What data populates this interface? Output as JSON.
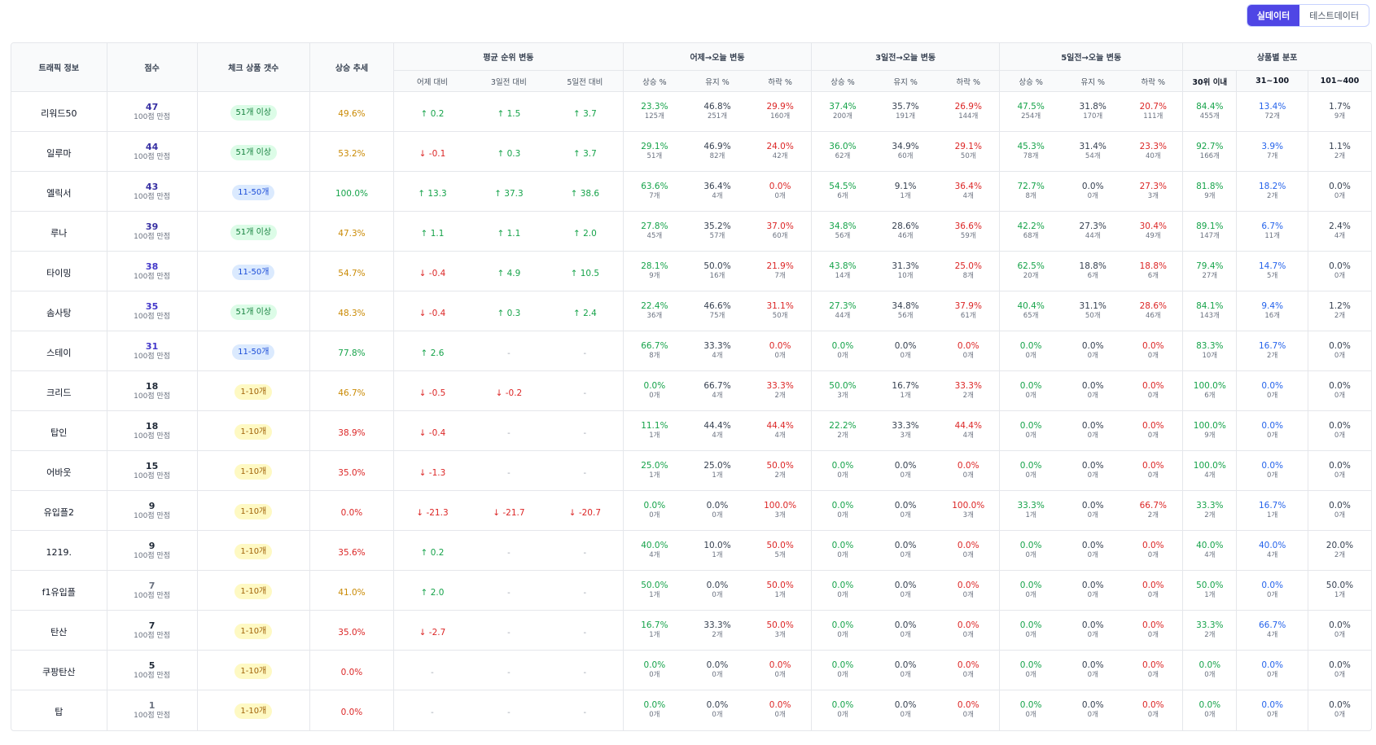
{
  "toggle": {
    "real": "실데이터",
    "test": "테스트데이터"
  },
  "headers": {
    "traffic": "트래픽 정보",
    "score": "점수",
    "checkcount": "체크 상품 갯수",
    "trend": "상승 추세",
    "avgrank": "평균 순위 변동",
    "rank_sub": [
      "어제 대비",
      "3일전 대비",
      "5일전 대비"
    ],
    "groups": [
      "어제→오늘 변동",
      "3일전→오늘 변동",
      "5일전→오늘 변동"
    ],
    "group_sub": [
      "상승 %",
      "유지 %",
      "하락 %"
    ],
    "dist": "상품별 분포",
    "dist_sub": [
      "30위 이내",
      "31~100",
      "101~400"
    ]
  },
  "score_suffix": "100점 만점",
  "badge_colors": {
    "51개 이상": {
      "bg": "#dcfce7",
      "fg": "#15803d"
    },
    "11-50개": {
      "bg": "#dbeafe",
      "fg": "#1d4ed8"
    },
    "1-10개": {
      "bg": "#fef9c3",
      "fg": "#a16207"
    }
  },
  "rows": [
    {
      "name": "리워드50",
      "score": "47",
      "score_color": "#3730a3",
      "badge": "51개 이상",
      "trend": "49.6%",
      "trend_color": "#ca8a04",
      "rank": [
        {
          "d": "up",
          "v": "0.2"
        },
        {
          "d": "up",
          "v": "1.5"
        },
        {
          "d": "up",
          "v": "3.7"
        }
      ],
      "g": [
        [
          "23.3%",
          "125개",
          "46.8%",
          "251개",
          "29.9%",
          "160개"
        ],
        [
          "37.4%",
          "200개",
          "35.7%",
          "191개",
          "26.9%",
          "144개"
        ],
        [
          "47.5%",
          "254개",
          "31.8%",
          "170개",
          "20.7%",
          "111개"
        ]
      ],
      "dist": [
        "84.4%",
        "455개",
        "13.4%",
        "72개",
        "1.7%",
        "9개"
      ]
    },
    {
      "name": "일루마",
      "score": "44",
      "score_color": "#3730a3",
      "badge": "51개 이상",
      "trend": "53.2%",
      "trend_color": "#ca8a04",
      "rank": [
        {
          "d": "down",
          "v": "-0.1"
        },
        {
          "d": "up",
          "v": "0.3"
        },
        {
          "d": "up",
          "v": "3.7"
        }
      ],
      "g": [
        [
          "29.1%",
          "51개",
          "46.9%",
          "82개",
          "24.0%",
          "42개"
        ],
        [
          "36.0%",
          "62개",
          "34.9%",
          "60개",
          "29.1%",
          "50개"
        ],
        [
          "45.3%",
          "78개",
          "31.4%",
          "54개",
          "23.3%",
          "40개"
        ]
      ],
      "dist": [
        "92.7%",
        "166개",
        "3.9%",
        "7개",
        "1.1%",
        "2개"
      ]
    },
    {
      "name": "엘릭서",
      "score": "43",
      "score_color": "#3730a3",
      "badge": "11-50개",
      "trend": "100.0%",
      "trend_color": "#16a34a",
      "rank": [
        {
          "d": "up",
          "v": "13.3"
        },
        {
          "d": "up",
          "v": "37.3"
        },
        {
          "d": "up",
          "v": "38.6"
        }
      ],
      "g": [
        [
          "63.6%",
          "7개",
          "36.4%",
          "4개",
          "0.0%",
          "0개"
        ],
        [
          "54.5%",
          "6개",
          "9.1%",
          "1개",
          "36.4%",
          "4개"
        ],
        [
          "72.7%",
          "8개",
          "0.0%",
          "0개",
          "27.3%",
          "3개"
        ]
      ],
      "dist": [
        "81.8%",
        "9개",
        "18.2%",
        "2개",
        "0.0%",
        "0개"
      ]
    },
    {
      "name": "루나",
      "score": "39",
      "score_color": "#3730a3",
      "badge": "51개 이상",
      "trend": "47.3%",
      "trend_color": "#ca8a04",
      "rank": [
        {
          "d": "up",
          "v": "1.1"
        },
        {
          "d": "up",
          "v": "1.1"
        },
        {
          "d": "up",
          "v": "2.0"
        }
      ],
      "g": [
        [
          "27.8%",
          "45개",
          "35.2%",
          "57개",
          "37.0%",
          "60개"
        ],
        [
          "34.8%",
          "56개",
          "28.6%",
          "46개",
          "36.6%",
          "59개"
        ],
        [
          "42.2%",
          "68개",
          "27.3%",
          "44개",
          "30.4%",
          "49개"
        ]
      ],
      "dist": [
        "89.1%",
        "147개",
        "6.7%",
        "11개",
        "2.4%",
        "4개"
      ]
    },
    {
      "name": "타이밍",
      "score": "38",
      "score_color": "#4338ca",
      "badge": "11-50개",
      "trend": "54.7%",
      "trend_color": "#ca8a04",
      "rank": [
        {
          "d": "down",
          "v": "-0.4"
        },
        {
          "d": "up",
          "v": "4.9"
        },
        {
          "d": "up",
          "v": "10.5"
        }
      ],
      "g": [
        [
          "28.1%",
          "9개",
          "50.0%",
          "16개",
          "21.9%",
          "7개"
        ],
        [
          "43.8%",
          "14개",
          "31.3%",
          "10개",
          "25.0%",
          "8개"
        ],
        [
          "62.5%",
          "20개",
          "18.8%",
          "6개",
          "18.8%",
          "6개"
        ]
      ],
      "dist": [
        "79.4%",
        "27개",
        "14.7%",
        "5개",
        "0.0%",
        "0개"
      ]
    },
    {
      "name": "솜사탕",
      "score": "35",
      "score_color": "#4338ca",
      "badge": "51개 이상",
      "trend": "48.3%",
      "trend_color": "#ca8a04",
      "rank": [
        {
          "d": "down",
          "v": "-0.4"
        },
        {
          "d": "up",
          "v": "0.3"
        },
        {
          "d": "up",
          "v": "2.4"
        }
      ],
      "g": [
        [
          "22.4%",
          "36개",
          "46.6%",
          "75개",
          "31.1%",
          "50개"
        ],
        [
          "27.3%",
          "44개",
          "34.8%",
          "56개",
          "37.9%",
          "61개"
        ],
        [
          "40.4%",
          "65개",
          "31.1%",
          "50개",
          "28.6%",
          "46개"
        ]
      ],
      "dist": [
        "84.1%",
        "143개",
        "9.4%",
        "16개",
        "1.2%",
        "2개"
      ]
    },
    {
      "name": "스테이",
      "score": "31",
      "score_color": "#4338ca",
      "badge": "11-50개",
      "trend": "77.8%",
      "trend_color": "#16a34a",
      "rank": [
        {
          "d": "up",
          "v": "2.6"
        },
        {
          "d": "none",
          "v": "-"
        },
        {
          "d": "none",
          "v": "-"
        }
      ],
      "g": [
        [
          "66.7%",
          "8개",
          "33.3%",
          "4개",
          "0.0%",
          "0개"
        ],
        [
          "0.0%",
          "0개",
          "0.0%",
          "0개",
          "0.0%",
          "0개"
        ],
        [
          "0.0%",
          "0개",
          "0.0%",
          "0개",
          "0.0%",
          "0개"
        ]
      ],
      "dist": [
        "83.3%",
        "10개",
        "16.7%",
        "2개",
        "0.0%",
        "0개"
      ]
    },
    {
      "name": "크리드",
      "score": "18",
      "score_color": "#1f2937",
      "badge": "1-10개",
      "trend": "46.7%",
      "trend_color": "#ca8a04",
      "rank": [
        {
          "d": "down",
          "v": "-0.5"
        },
        {
          "d": "down",
          "v": "-0.2"
        },
        {
          "d": "none",
          "v": "-"
        }
      ],
      "g": [
        [
          "0.0%",
          "0개",
          "66.7%",
          "4개",
          "33.3%",
          "2개"
        ],
        [
          "50.0%",
          "3개",
          "16.7%",
          "1개",
          "33.3%",
          "2개"
        ],
        [
          "0.0%",
          "0개",
          "0.0%",
          "0개",
          "0.0%",
          "0개"
        ]
      ],
      "dist": [
        "100.0%",
        "6개",
        "0.0%",
        "0개",
        "0.0%",
        "0개"
      ]
    },
    {
      "name": "탑인",
      "score": "18",
      "score_color": "#1f2937",
      "badge": "1-10개",
      "trend": "38.9%",
      "trend_color": "#dc2626",
      "rank": [
        {
          "d": "down",
          "v": "-0.4"
        },
        {
          "d": "none",
          "v": "-"
        },
        {
          "d": "none",
          "v": "-"
        }
      ],
      "g": [
        [
          "11.1%",
          "1개",
          "44.4%",
          "4개",
          "44.4%",
          "4개"
        ],
        [
          "22.2%",
          "2개",
          "33.3%",
          "3개",
          "44.4%",
          "4개"
        ],
        [
          "0.0%",
          "0개",
          "0.0%",
          "0개",
          "0.0%",
          "0개"
        ]
      ],
      "dist": [
        "100.0%",
        "9개",
        "0.0%",
        "0개",
        "0.0%",
        "0개"
      ]
    },
    {
      "name": "어바웃",
      "score": "15",
      "score_color": "#1f2937",
      "badge": "1-10개",
      "trend": "35.0%",
      "trend_color": "#dc2626",
      "rank": [
        {
          "d": "down",
          "v": "-1.3"
        },
        {
          "d": "none",
          "v": "-"
        },
        {
          "d": "none",
          "v": "-"
        }
      ],
      "g": [
        [
          "25.0%",
          "1개",
          "25.0%",
          "1개",
          "50.0%",
          "2개"
        ],
        [
          "0.0%",
          "0개",
          "0.0%",
          "0개",
          "0.0%",
          "0개"
        ],
        [
          "0.0%",
          "0개",
          "0.0%",
          "0개",
          "0.0%",
          "0개"
        ]
      ],
      "dist": [
        "100.0%",
        "4개",
        "0.0%",
        "0개",
        "0.0%",
        "0개"
      ]
    },
    {
      "name": "유입플2",
      "score": "9",
      "score_color": "#1f2937",
      "badge": "1-10개",
      "trend": "0.0%",
      "trend_color": "#dc2626",
      "rank": [
        {
          "d": "down",
          "v": "-21.3"
        },
        {
          "d": "down",
          "v": "-21.7"
        },
        {
          "d": "down",
          "v": "-20.7"
        }
      ],
      "g": [
        [
          "0.0%",
          "0개",
          "0.0%",
          "0개",
          "100.0%",
          "3개"
        ],
        [
          "0.0%",
          "0개",
          "0.0%",
          "0개",
          "100.0%",
          "3개"
        ],
        [
          "33.3%",
          "1개",
          "0.0%",
          "0개",
          "66.7%",
          "2개"
        ]
      ],
      "dist": [
        "33.3%",
        "2개",
        "16.7%",
        "1개",
        "0.0%",
        "0개"
      ]
    },
    {
      "name": "1219.",
      "score": "9",
      "score_color": "#1f2937",
      "badge": "1-10개",
      "trend": "35.6%",
      "trend_color": "#dc2626",
      "rank": [
        {
          "d": "up",
          "v": "0.2"
        },
        {
          "d": "none",
          "v": "-"
        },
        {
          "d": "none",
          "v": "-"
        }
      ],
      "g": [
        [
          "40.0%",
          "4개",
          "10.0%",
          "1개",
          "50.0%",
          "5개"
        ],
        [
          "0.0%",
          "0개",
          "0.0%",
          "0개",
          "0.0%",
          "0개"
        ],
        [
          "0.0%",
          "0개",
          "0.0%",
          "0개",
          "0.0%",
          "0개"
        ]
      ],
      "dist": [
        "40.0%",
        "4개",
        "40.0%",
        "4개",
        "20.0%",
        "2개"
      ]
    },
    {
      "name": "f1유입플",
      "score": "7",
      "score_color": "#6b7280",
      "badge": "1-10개",
      "trend": "41.0%",
      "trend_color": "#ca8a04",
      "rank": [
        {
          "d": "up",
          "v": "2.0"
        },
        {
          "d": "none",
          "v": "-"
        },
        {
          "d": "none",
          "v": "-"
        }
      ],
      "g": [
        [
          "50.0%",
          "1개",
          "0.0%",
          "0개",
          "50.0%",
          "1개"
        ],
        [
          "0.0%",
          "0개",
          "0.0%",
          "0개",
          "0.0%",
          "0개"
        ],
        [
          "0.0%",
          "0개",
          "0.0%",
          "0개",
          "0.0%",
          "0개"
        ]
      ],
      "dist": [
        "50.0%",
        "1개",
        "0.0%",
        "0개",
        "50.0%",
        "1개"
      ]
    },
    {
      "name": "탄산",
      "score": "7",
      "score_color": "#1f2937",
      "badge": "1-10개",
      "trend": "35.0%",
      "trend_color": "#dc2626",
      "rank": [
        {
          "d": "down",
          "v": "-2.7"
        },
        {
          "d": "none",
          "v": "-"
        },
        {
          "d": "none",
          "v": "-"
        }
      ],
      "g": [
        [
          "16.7%",
          "1개",
          "33.3%",
          "2개",
          "50.0%",
          "3개"
        ],
        [
          "0.0%",
          "0개",
          "0.0%",
          "0개",
          "0.0%",
          "0개"
        ],
        [
          "0.0%",
          "0개",
          "0.0%",
          "0개",
          "0.0%",
          "0개"
        ]
      ],
      "dist": [
        "33.3%",
        "2개",
        "66.7%",
        "4개",
        "0.0%",
        "0개"
      ]
    },
    {
      "name": "쿠팡탄산",
      "score": "5",
      "score_color": "#1f2937",
      "badge": "1-10개",
      "trend": "0.0%",
      "trend_color": "#dc2626",
      "rank": [
        {
          "d": "none",
          "v": "-"
        },
        {
          "d": "none",
          "v": "-"
        },
        {
          "d": "none",
          "v": "-"
        }
      ],
      "g": [
        [
          "0.0%",
          "0개",
          "0.0%",
          "0개",
          "0.0%",
          "0개"
        ],
        [
          "0.0%",
          "0개",
          "0.0%",
          "0개",
          "0.0%",
          "0개"
        ],
        [
          "0.0%",
          "0개",
          "0.0%",
          "0개",
          "0.0%",
          "0개"
        ]
      ],
      "dist": [
        "0.0%",
        "0개",
        "0.0%",
        "0개",
        "0.0%",
        "0개"
      ]
    },
    {
      "name": "탑",
      "score": "1",
      "score_color": "#6b7280",
      "badge": "1-10개",
      "trend": "0.0%",
      "trend_color": "#dc2626",
      "rank": [
        {
          "d": "none",
          "v": "-"
        },
        {
          "d": "none",
          "v": "-"
        },
        {
          "d": "none",
          "v": "-"
        }
      ],
      "g": [
        [
          "0.0%",
          "0개",
          "0.0%",
          "0개",
          "0.0%",
          "0개"
        ],
        [
          "0.0%",
          "0개",
          "0.0%",
          "0개",
          "0.0%",
          "0개"
        ],
        [
          "0.0%",
          "0개",
          "0.0%",
          "0개",
          "0.0%",
          "0개"
        ]
      ],
      "dist": [
        "0.0%",
        "0개",
        "0.0%",
        "0개",
        "0.0%",
        "0개"
      ]
    }
  ]
}
